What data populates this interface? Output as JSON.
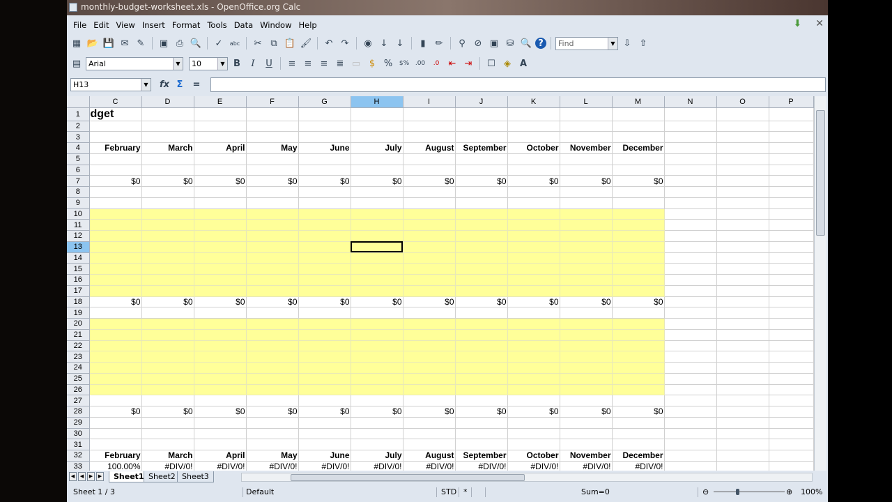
{
  "window": {
    "title": "monthly-budget-worksheet.xls - OpenOffice.org Calc"
  },
  "menu": [
    "File",
    "Edit",
    "View",
    "Insert",
    "Format",
    "Tools",
    "Data",
    "Window",
    "Help"
  ],
  "toolbar": {
    "find_placeholder": "Find",
    "font_name": "Arial",
    "font_size": "10",
    "icons": [
      "new-icon",
      "open-icon",
      "save-icon",
      "email-icon",
      "edit-file-icon",
      "pdf-icon",
      "print-icon",
      "page-preview-icon",
      "spellcheck-icon",
      "autospell-icon",
      "cut-icon",
      "copy-icon",
      "paste-icon",
      "clone-format-icon",
      "undo-icon",
      "redo-icon",
      "navigator-icon",
      "sort-asc-icon",
      "sort-desc-icon",
      "chart-icon",
      "draw-icon",
      "find-replace-icon",
      "navigator2-icon",
      "gallery-icon",
      "datasources-icon",
      "zoom-icon",
      "help-icon"
    ]
  },
  "formula_bar": {
    "cell_ref": "H13",
    "content": ""
  },
  "columns": [
    "C",
    "D",
    "E",
    "F",
    "G",
    "H",
    "I",
    "J",
    "K",
    "L",
    "M",
    "N",
    "O",
    "P"
  ],
  "selected_column": "H",
  "selected_row": 13,
  "cells": {
    "1": {
      "C": "dget"
    },
    "4": {
      "C": "February",
      "D": "March",
      "E": "April",
      "F": "May",
      "G": "June",
      "H": "July",
      "I": "August",
      "J": "September",
      "K": "October",
      "L": "November",
      "M": "December"
    },
    "7": {
      "C": "$0",
      "D": "$0",
      "E": "$0",
      "F": "$0",
      "G": "$0",
      "H": "$0",
      "I": "$0",
      "J": "$0",
      "K": "$0",
      "L": "$0",
      "M": "$0"
    },
    "18": {
      "C": "$0",
      "D": "$0",
      "E": "$0",
      "F": "$0",
      "G": "$0",
      "H": "$0",
      "I": "$0",
      "J": "$0",
      "K": "$0",
      "L": "$0",
      "M": "$0"
    },
    "28": {
      "C": "$0",
      "D": "$0",
      "E": "$0",
      "F": "$0",
      "G": "$0",
      "H": "$0",
      "I": "$0",
      "J": "$0",
      "K": "$0",
      "L": "$0",
      "M": "$0"
    },
    "32": {
      "C": "February",
      "D": "March",
      "E": "April",
      "F": "May",
      "G": "June",
      "H": "July",
      "I": "August",
      "J": "September",
      "K": "October",
      "L": "November",
      "M": "December"
    },
    "33": {
      "C": "100.00%",
      "D": "#DIV/0!",
      "E": "#DIV/0!",
      "F": "#DIV/0!",
      "G": "#DIV/0!",
      "H": "#DIV/0!",
      "I": "#DIV/0!",
      "J": "#DIV/0!",
      "K": "#DIV/0!",
      "L": "#DIV/0!",
      "M": "#DIV/0!"
    }
  },
  "highlight_color": "#ffff99",
  "sheet_tabs": [
    "Sheet1",
    "Sheet2",
    "Sheet3"
  ],
  "active_sheet": "Sheet1",
  "status": {
    "sheet": "Sheet 1 / 3",
    "style": "Default",
    "mode": "STD",
    "modified": "*",
    "sum": "Sum=0",
    "zoom": "100%",
    "zoom_level": 100
  }
}
